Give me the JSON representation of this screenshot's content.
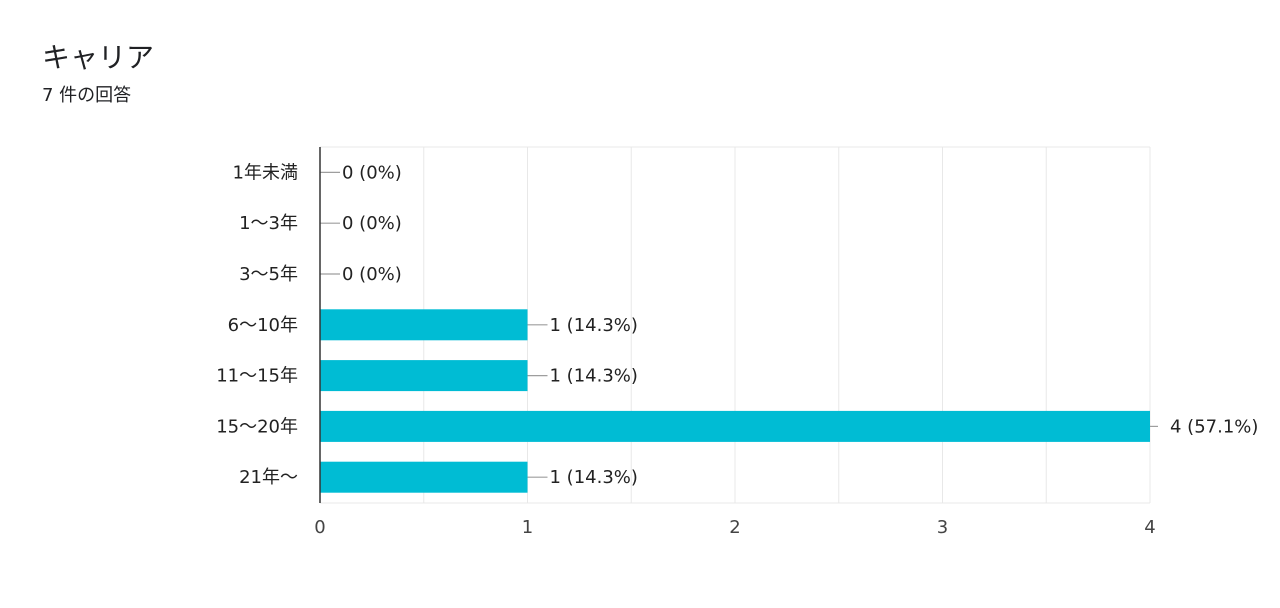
{
  "form": {
    "question_title": "キャリア",
    "response_count": "7 件の回答"
  },
  "colors": {
    "bar": "#00bcd4",
    "grid": "#e8e8e8",
    "axis": "#333333",
    "leader": "#9e9e9e"
  },
  "chart_data": {
    "type": "bar",
    "orientation": "horizontal",
    "title": "キャリア",
    "categories": [
      "1年未満",
      "1〜3年",
      "3〜5年",
      "6〜10年",
      "11〜15年",
      "15〜20年",
      "21年〜"
    ],
    "values": [
      0,
      0,
      0,
      1,
      1,
      4,
      1
    ],
    "data_labels": [
      "0 (0%)",
      "0 (0%)",
      "0 (0%)",
      "1 (14.3%)",
      "1 (14.3%)",
      "4 (57.1%)",
      "1 (14.3%)"
    ],
    "xlim": [
      0,
      4
    ],
    "x_ticks": [
      "0",
      "1",
      "2",
      "3",
      "4"
    ],
    "grid": true,
    "legend": "none"
  }
}
